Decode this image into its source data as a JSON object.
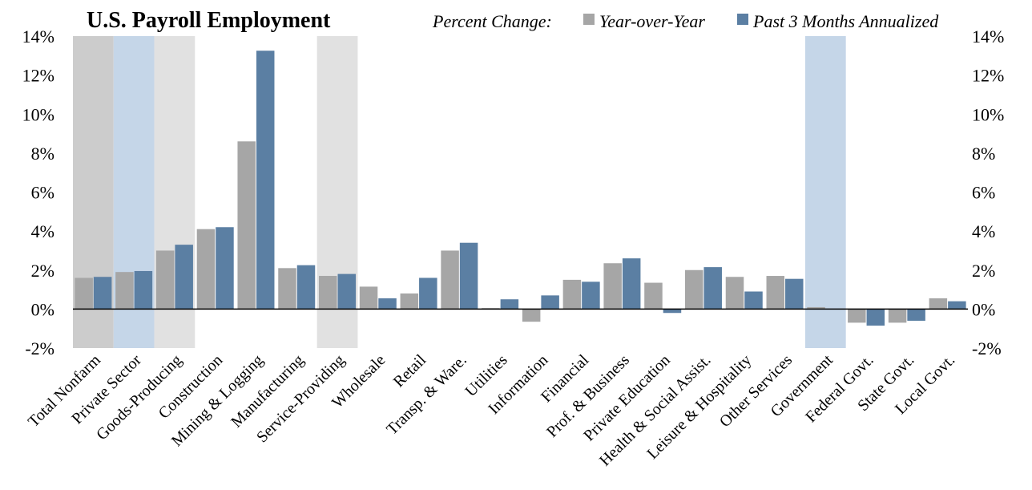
{
  "chart_data": {
    "type": "bar",
    "title": "U.S. Payroll Employment",
    "legend_title": "Percent Change:",
    "legend_position": "top-right",
    "categories": [
      "Total Nonfarm",
      "Private Sector",
      "Goods-Producing",
      "Construction",
      "Mining & Logging",
      "Manufacturing",
      "Service-Providing",
      "Wholesale",
      "Retail",
      "Transp. & Ware.",
      "Utilities",
      "Information",
      "Financial",
      "Prof. & Business",
      "Private Education",
      "Health & Social Assist.",
      "Leisure & Hospitality",
      "Other Services",
      "Government",
      "Federal Govt.",
      "State Govt.",
      "Local Govt."
    ],
    "series": [
      {
        "name": "Year-over-Year",
        "color": "#a6a6a6",
        "values": [
          1.6,
          1.9,
          3.0,
          4.1,
          8.6,
          2.1,
          1.7,
          1.15,
          0.8,
          3.0,
          0.05,
          -0.65,
          1.5,
          2.35,
          1.35,
          2.0,
          1.65,
          1.7,
          0.1,
          -0.7,
          -0.7,
          0.55
        ]
      },
      {
        "name": "Past 3 Months Annualized",
        "color": "#5b7fa3",
        "values": [
          1.65,
          1.95,
          3.3,
          4.2,
          13.25,
          2.25,
          1.8,
          0.55,
          1.6,
          3.4,
          0.5,
          0.7,
          1.4,
          2.6,
          -0.2,
          2.15,
          0.9,
          1.55,
          0.0,
          -0.85,
          -0.6,
          0.4
        ]
      }
    ],
    "ylim": [
      -2,
      14
    ],
    "yticks": [
      -2,
      0,
      2,
      4,
      6,
      8,
      10,
      12,
      14
    ],
    "ytick_labels": [
      "-2%",
      "0%",
      "2%",
      "4%",
      "6%",
      "8%",
      "10%",
      "12%",
      "14%"
    ],
    "grid": false,
    "highlight_bands": [
      {
        "category": "Total Nonfarm",
        "color": "#cccccc"
      },
      {
        "category": "Private Sector",
        "color": "#c5d6e8"
      },
      {
        "category": "Goods-Producing",
        "color": "#e1e1e1"
      },
      {
        "category": "Service-Providing",
        "color": "#e1e1e1"
      },
      {
        "category": "Government",
        "color": "#c5d6e8"
      }
    ]
  }
}
